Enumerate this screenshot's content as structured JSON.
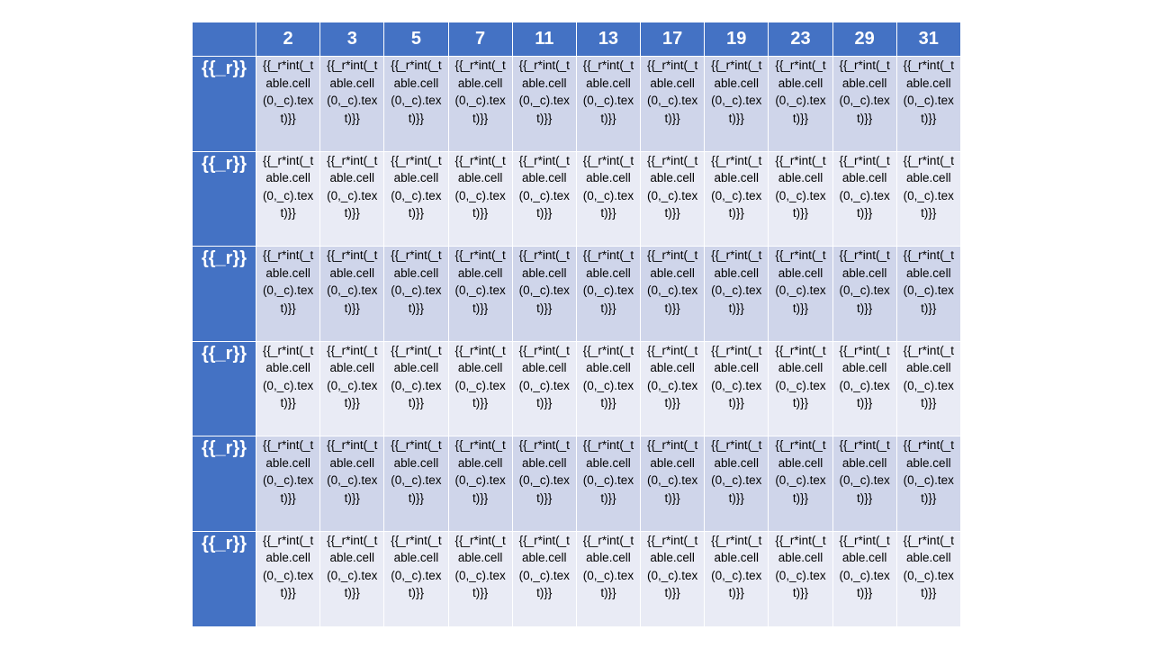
{
  "table": {
    "column_headers": [
      "2",
      "3",
      "5",
      "7",
      "11",
      "13",
      "17",
      "19",
      "23",
      "29",
      "31"
    ],
    "row_header": "{{_r}}",
    "cell_template": "{{_r*int(_table.cell(0,_c).text)}}",
    "row_count": 6
  },
  "colors": {
    "header_fill": "#4472C4",
    "band_dark": "#CFD5EA",
    "band_light": "#E9EBF5",
    "header_text": "#FFFFFF"
  }
}
